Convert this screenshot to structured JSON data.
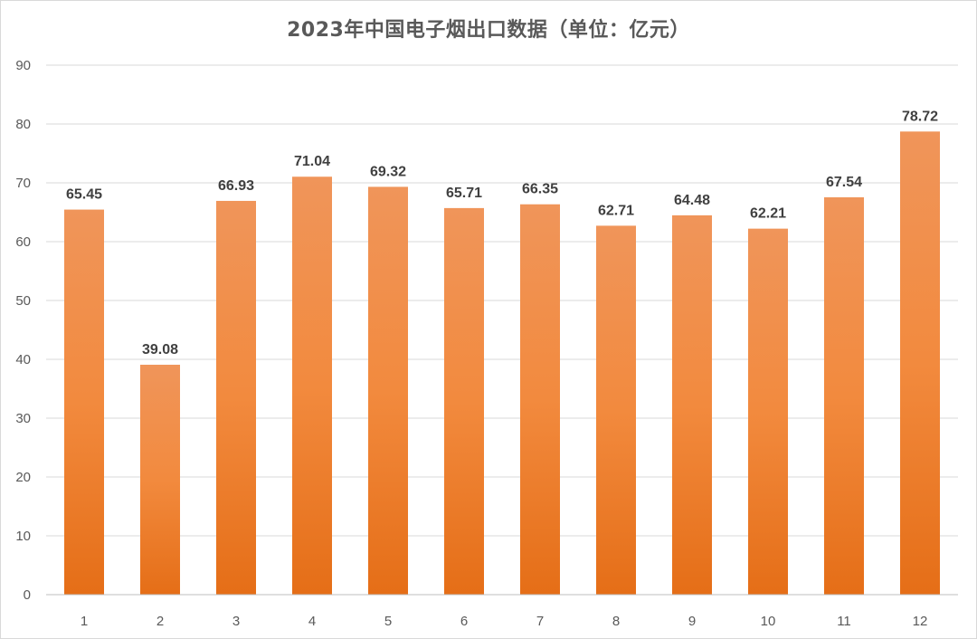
{
  "chart_data": {
    "type": "bar",
    "title": "2023年中国电子烟出口数据（单位：亿元）",
    "xlabel": "",
    "ylabel": "",
    "categories": [
      "1",
      "2",
      "3",
      "4",
      "5",
      "6",
      "7",
      "8",
      "9",
      "10",
      "11",
      "12"
    ],
    "values": [
      65.45,
      39.08,
      66.93,
      71.04,
      69.32,
      65.71,
      66.35,
      62.71,
      64.48,
      62.21,
      67.54,
      78.72
    ],
    "data_labels": [
      "65.45",
      "39.08",
      "66.93",
      "71.04",
      "69.32",
      "65.71",
      "66.35",
      "62.71",
      "64.48",
      "62.21",
      "67.54",
      "78.72"
    ],
    "ylim": [
      0,
      90
    ],
    "yticks": [
      0,
      10,
      20,
      30,
      40,
      50,
      60,
      70,
      80,
      90
    ],
    "grid": true,
    "legend": "none",
    "colors": {
      "bar_top": "#f0955a",
      "bar_mid": "#f28a3e",
      "bar_bottom": "#e56e17",
      "grid": "#d9d9d9",
      "axis": "#bfbfbf"
    }
  }
}
